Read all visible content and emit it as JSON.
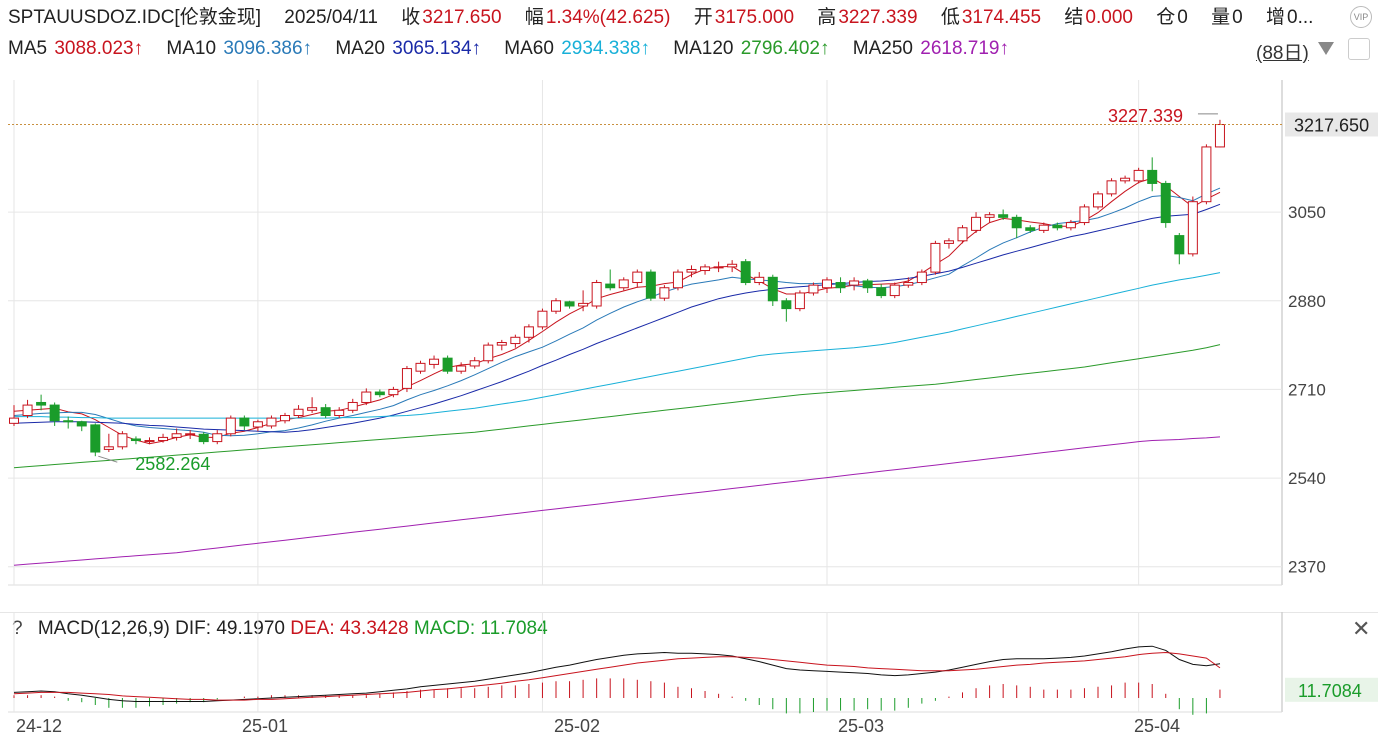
{
  "header": {
    "symbol": "SPTAUUSDOZ.IDC[伦敦金现]",
    "date": "2025/04/11",
    "close_label": "收",
    "close_value": "3217.650",
    "change_label": "幅",
    "change_value": "1.34%(42.625)",
    "open_label": "开",
    "open_value": "3175.000",
    "high_label": "高",
    "high_value": "3227.339",
    "low_label": "低",
    "low_value": "3174.455",
    "settle_label": "结",
    "settle_value": "0.000",
    "oi_label": "仓",
    "oi_value": "0",
    "vol_label": "量",
    "vol_value": "0",
    "inc_label": "增",
    "inc_value": "0..."
  },
  "ma_line": {
    "ma5_label": "MA5",
    "ma5_value": "3088.023↑",
    "ma10_label": "MA10",
    "ma10_value": "3096.386↑",
    "ma20_label": "MA20",
    "ma20_value": "3065.134↑",
    "ma60_label": "MA60",
    "ma60_value": "2934.338↑",
    "ma120_label": "MA120",
    "ma120_value": "2796.402↑",
    "ma250_label": "MA250",
    "ma250_value": "2618.719↑",
    "period": "(88日)"
  },
  "corner_icon_text": "VIP",
  "colors": {
    "up": "#c8141e",
    "down": "#1a9c2a",
    "ma5": "#c8141e",
    "ma10": "#2a7ab8",
    "ma20": "#1a2aa8",
    "ma60": "#18b0d8",
    "ma120": "#2a9a2a",
    "ma250": "#a020b0"
  },
  "macd": {
    "title": "MACD(12,26,9)",
    "dif_label": "DIF:",
    "dif_value": "49.1970",
    "dea_label": "DEA:",
    "dea_value": "43.3428",
    "macd_label": "MACD:",
    "macd_value": "11.7084",
    "current_tag": "11.7084"
  },
  "chart_data": {
    "type": "candlestick",
    "y_ticks": [
      2370,
      2540,
      2710,
      2880,
      3050
    ],
    "ylim": [
      2335,
      3265
    ],
    "price_tag": "3217.650",
    "high_annotation": "3227.339",
    "low_annotation": "2582.264",
    "x_labels": [
      "24-12",
      "25-01",
      "25-02",
      "25-03",
      "25-04"
    ],
    "x_label_index": [
      0,
      18,
      39,
      60,
      83
    ],
    "candles": [
      [
        2645,
        2655,
        2640,
        2680
      ],
      [
        2660,
        2680,
        2655,
        2690
      ],
      [
        2685,
        2680,
        2670,
        2700
      ],
      [
        2680,
        2650,
        2640,
        2685
      ],
      [
        2650,
        2648,
        2635,
        2658
      ],
      [
        2648,
        2640,
        2630,
        2650
      ],
      [
        2642,
        2590,
        2582,
        2645
      ],
      [
        2595,
        2600,
        2590,
        2625
      ],
      [
        2600,
        2625,
        2595,
        2630
      ],
      [
        2615,
        2612,
        2605,
        2620
      ],
      [
        2610,
        2612,
        2605,
        2618
      ],
      [
        2612,
        2618,
        2608,
        2625
      ],
      [
        2618,
        2625,
        2612,
        2635
      ],
      [
        2625,
        2625,
        2615,
        2632
      ],
      [
        2624,
        2610,
        2605,
        2628
      ],
      [
        2610,
        2625,
        2605,
        2632
      ],
      [
        2625,
        2655,
        2620,
        2660
      ],
      [
        2655,
        2640,
        2632,
        2660
      ],
      [
        2638,
        2648,
        2630,
        2652
      ],
      [
        2640,
        2655,
        2635,
        2660
      ],
      [
        2650,
        2660,
        2645,
        2665
      ],
      [
        2660,
        2672,
        2655,
        2680
      ],
      [
        2670,
        2675,
        2665,
        2695
      ],
      [
        2675,
        2660,
        2655,
        2682
      ],
      [
        2660,
        2670,
        2655,
        2676
      ],
      [
        2670,
        2685,
        2665,
        2692
      ],
      [
        2685,
        2705,
        2680,
        2712
      ],
      [
        2705,
        2700,
        2695,
        2710
      ],
      [
        2700,
        2710,
        2695,
        2715
      ],
      [
        2712,
        2750,
        2705,
        2755
      ],
      [
        2745,
        2760,
        2740,
        2765
      ],
      [
        2758,
        2768,
        2750,
        2775
      ],
      [
        2770,
        2745,
        2740,
        2775
      ],
      [
        2745,
        2755,
        2740,
        2762
      ],
      [
        2755,
        2765,
        2750,
        2772
      ],
      [
        2765,
        2795,
        2760,
        2800
      ],
      [
        2795,
        2800,
        2785,
        2805
      ],
      [
        2798,
        2810,
        2790,
        2815
      ],
      [
        2810,
        2830,
        2800,
        2835
      ],
      [
        2830,
        2860,
        2825,
        2865
      ],
      [
        2860,
        2880,
        2855,
        2885
      ],
      [
        2878,
        2870,
        2865,
        2880
      ],
      [
        2870,
        2875,
        2860,
        2900
      ],
      [
        2870,
        2915,
        2865,
        2920
      ],
      [
        2912,
        2905,
        2900,
        2940
      ],
      [
        2905,
        2920,
        2900,
        2925
      ],
      [
        2915,
        2935,
        2905,
        2940
      ],
      [
        2935,
        2885,
        2880,
        2940
      ],
      [
        2885,
        2905,
        2880,
        2910
      ],
      [
        2905,
        2935,
        2900,
        2940
      ],
      [
        2935,
        2940,
        2925,
        2948
      ],
      [
        2938,
        2945,
        2930,
        2950
      ],
      [
        2945,
        2945,
        2935,
        2955
      ],
      [
        2945,
        2950,
        2935,
        2958
      ],
      [
        2955,
        2915,
        2910,
        2960
      ],
      [
        2915,
        2925,
        2910,
        2935
      ],
      [
        2925,
        2880,
        2870,
        2930
      ],
      [
        2880,
        2865,
        2840,
        2885
      ],
      [
        2865,
        2895,
        2860,
        2900
      ],
      [
        2895,
        2910,
        2890,
        2915
      ],
      [
        2905,
        2920,
        2895,
        2925
      ],
      [
        2915,
        2905,
        2895,
        2925
      ],
      [
        2910,
        2918,
        2900,
        2925
      ],
      [
        2918,
        2905,
        2895,
        2922
      ],
      [
        2905,
        2890,
        2885,
        2912
      ],
      [
        2890,
        2910,
        2885,
        2915
      ],
      [
        2910,
        2915,
        2905,
        2925
      ],
      [
        2915,
        2935,
        2910,
        2940
      ],
      [
        2935,
        2990,
        2930,
        2995
      ],
      [
        2990,
        2995,
        2980,
        3000
      ],
      [
        2995,
        3020,
        2990,
        3025
      ],
      [
        3015,
        3040,
        3010,
        3050
      ],
      [
        3040,
        3045,
        3030,
        3050
      ],
      [
        3045,
        3040,
        3035,
        3055
      ],
      [
        3040,
        3020,
        3000,
        3045
      ],
      [
        3020,
        3015,
        3010,
        3025
      ],
      [
        3015,
        3025,
        3010,
        3030
      ],
      [
        3025,
        3020,
        3015,
        3030
      ],
      [
        3020,
        3030,
        3015,
        3035
      ],
      [
        3030,
        3060,
        3025,
        3065
      ],
      [
        3060,
        3085,
        3055,
        3090
      ],
      [
        3085,
        3110,
        3080,
        3115
      ],
      [
        3110,
        3115,
        3105,
        3120
      ],
      [
        3110,
        3130,
        3105,
        3135
      ],
      [
        3130,
        3105,
        3090,
        3155
      ],
      [
        3105,
        3030,
        3020,
        3110
      ],
      [
        3005,
        2970,
        2950,
        3010
      ],
      [
        2970,
        3070,
        2965,
        3080
      ],
      [
        3070,
        3175,
        3065,
        3180
      ],
      [
        3175,
        3218,
        3174,
        3227
      ]
    ],
    "ma_series": [
      {
        "name": "MA5",
        "values": [
          2668,
          2670,
          2672,
          2674,
          2667,
          2663,
          2652,
          2637,
          2622,
          2613,
          2606,
          2611,
          2618,
          2623,
          2618,
          2618,
          2626,
          2630,
          2637,
          2645,
          2652,
          2656,
          2662,
          2668,
          2670,
          2676,
          2683,
          2690,
          2700,
          2715,
          2727,
          2740,
          2752,
          2757,
          2759,
          2769,
          2777,
          2788,
          2804,
          2821,
          2839,
          2855,
          2868,
          2884,
          2892,
          2899,
          2906,
          2908,
          2913,
          2916,
          2930,
          2941,
          2945,
          2946,
          2930,
          2918,
          2903,
          2893,
          2893,
          2898,
          2904,
          2906,
          2910,
          2911,
          2912,
          2913,
          2918,
          2933,
          2950,
          2966,
          2992,
          3013,
          3030,
          3038,
          3035,
          3031,
          3028,
          3023,
          3023,
          3034,
          3049,
          3070,
          3090,
          3107,
          3115,
          3100,
          3080,
          3060,
          3075,
          3088
        ]
      },
      {
        "name": "MA10",
        "values": [
          2660,
          2662,
          2664,
          2665,
          2666,
          2666,
          2662,
          2654,
          2646,
          2640,
          2637,
          2635,
          2633,
          2631,
          2628,
          2622,
          2621,
          2622,
          2625,
          2629,
          2631,
          2636,
          2642,
          2649,
          2655,
          2660,
          2666,
          2672,
          2679,
          2690,
          2700,
          2708,
          2717,
          2727,
          2738,
          2750,
          2762,
          2773,
          2782,
          2791,
          2803,
          2816,
          2828,
          2843,
          2856,
          2868,
          2878,
          2887,
          2897,
          2905,
          2912,
          2916,
          2920,
          2925,
          2922,
          2920,
          2918,
          2915,
          2913,
          2913,
          2914,
          2912,
          2909,
          2906,
          2905,
          2907,
          2911,
          2917,
          2924,
          2931,
          2947,
          2962,
          2978,
          2991,
          3001,
          3012,
          3021,
          3028,
          3031,
          3034,
          3039,
          3048,
          3058,
          3070,
          3080,
          3082,
          3078,
          3072,
          3085,
          3096
        ]
      },
      {
        "name": "MA20",
        "values": [
          2645,
          2646,
          2647,
          2648,
          2648,
          2648,
          2647,
          2646,
          2645,
          2643,
          2641,
          2640,
          2638,
          2636,
          2634,
          2633,
          2632,
          2631,
          2630,
          2629,
          2628,
          2630,
          2633,
          2637,
          2641,
          2645,
          2650,
          2655,
          2661,
          2668,
          2675,
          2682,
          2690,
          2698,
          2707,
          2716,
          2725,
          2735,
          2745,
          2756,
          2766,
          2777,
          2787,
          2798,
          2808,
          2818,
          2828,
          2838,
          2848,
          2858,
          2868,
          2876,
          2884,
          2890,
          2895,
          2899,
          2902,
          2905,
          2907,
          2909,
          2911,
          2913,
          2915,
          2917,
          2918,
          2920,
          2923,
          2927,
          2932,
          2937,
          2944,
          2952,
          2960,
          2968,
          2975,
          2982,
          2989,
          2996,
          3003,
          3008,
          3014,
          3020,
          3026,
          3032,
          3038,
          3042,
          3044,
          3046,
          3055,
          3065
        ]
      },
      {
        "name": "MA60",
        "values": [
          2658,
          2658,
          2658,
          2657,
          2657,
          2656,
          2656,
          2655,
          2655,
          2655,
          2655,
          2655,
          2655,
          2655,
          2655,
          2655,
          2655,
          2655,
          2655,
          2655,
          2655,
          2655,
          2655,
          2655,
          2656,
          2656,
          2657,
          2658,
          2659,
          2660,
          2662,
          2665,
          2668,
          2671,
          2674,
          2678,
          2682,
          2686,
          2690,
          2695,
          2700,
          2705,
          2710,
          2715,
          2720,
          2725,
          2730,
          2735,
          2740,
          2745,
          2750,
          2755,
          2760,
          2765,
          2770,
          2775,
          2778,
          2780,
          2782,
          2784,
          2786,
          2788,
          2790,
          2793,
          2796,
          2800,
          2805,
          2810,
          2815,
          2820,
          2826,
          2832,
          2838,
          2844,
          2850,
          2856,
          2862,
          2868,
          2874,
          2880,
          2886,
          2892,
          2898,
          2904,
          2910,
          2915,
          2920,
          2924,
          2929,
          2934
        ]
      },
      {
        "name": "MA120",
        "values": [
          2560,
          2562,
          2564,
          2566,
          2568,
          2570,
          2572,
          2574,
          2576,
          2578,
          2580,
          2582,
          2584,
          2586,
          2588,
          2590,
          2592,
          2594,
          2596,
          2598,
          2600,
          2602,
          2604,
          2606,
          2608,
          2610,
          2612,
          2614,
          2616,
          2618,
          2620,
          2622,
          2624,
          2626,
          2628,
          2631,
          2634,
          2637,
          2640,
          2643,
          2646,
          2649,
          2652,
          2655,
          2658,
          2661,
          2664,
          2667,
          2670,
          2673,
          2676,
          2679,
          2682,
          2685,
          2688,
          2691,
          2694,
          2697,
          2700,
          2702,
          2704,
          2706,
          2708,
          2710,
          2712,
          2714,
          2716,
          2718,
          2720,
          2723,
          2726,
          2729,
          2732,
          2735,
          2738,
          2741,
          2744,
          2747,
          2750,
          2753,
          2757,
          2761,
          2765,
          2769,
          2773,
          2777,
          2781,
          2785,
          2790,
          2796
        ]
      },
      {
        "name": "MA250",
        "values": [
          2373,
          2375,
          2377,
          2379,
          2381,
          2383,
          2385,
          2387,
          2389,
          2391,
          2393,
          2395,
          2397,
          2400,
          2403,
          2406,
          2409,
          2412,
          2415,
          2418,
          2421,
          2424,
          2427,
          2430,
          2433,
          2436,
          2439,
          2442,
          2445,
          2448,
          2451,
          2454,
          2457,
          2460,
          2463,
          2466,
          2469,
          2472,
          2475,
          2478,
          2481,
          2484,
          2487,
          2490,
          2493,
          2496,
          2499,
          2502,
          2505,
          2508,
          2511,
          2514,
          2517,
          2520,
          2523,
          2526,
          2529,
          2532,
          2535,
          2538,
          2541,
          2544,
          2547,
          2550,
          2553,
          2556,
          2559,
          2562,
          2565,
          2568,
          2571,
          2574,
          2577,
          2580,
          2583,
          2586,
          2589,
          2592,
          2595,
          2598,
          2601,
          2604,
          2607,
          2610,
          2612,
          2613,
          2614,
          2616,
          2617,
          2619
        ]
      }
    ],
    "macd_dif": [
      8,
      9,
      10,
      9,
      6,
      4,
      1,
      -2,
      -4,
      -5,
      -5,
      -5,
      -5,
      -5,
      -5,
      -4,
      -3,
      -2,
      -1,
      0,
      1,
      2,
      3,
      4,
      5,
      6,
      7,
      9,
      11,
      13,
      16,
      18,
      20,
      22,
      24,
      27,
      30,
      33,
      36,
      40,
      44,
      47,
      51,
      55,
      58,
      61,
      63,
      64,
      65,
      64,
      64,
      63,
      62,
      60,
      56,
      52,
      47,
      42,
      40,
      39,
      38,
      37,
      36,
      35,
      33,
      32,
      33,
      35,
      37,
      40,
      44,
      48,
      52,
      55,
      56,
      56,
      56,
      57,
      58,
      60,
      63,
      66,
      70,
      73,
      74,
      68,
      55,
      48,
      46,
      49
    ],
    "macd_dea": [
      6,
      7,
      8,
      8,
      8,
      7,
      6,
      5,
      3,
      2,
      1,
      0,
      -1,
      -2,
      -2,
      -3,
      -3,
      -3,
      -2,
      -2,
      -1,
      0,
      1,
      2,
      3,
      4,
      5,
      6,
      7,
      8,
      10,
      12,
      13,
      15,
      17,
      19,
      21,
      24,
      26,
      29,
      32,
      35,
      38,
      41,
      44,
      47,
      50,
      52,
      54,
      56,
      57,
      58,
      59,
      59,
      58,
      57,
      55,
      53,
      51,
      49,
      47,
      46,
      45,
      43,
      42,
      41,
      40,
      39,
      39,
      39,
      40,
      41,
      43,
      45,
      47,
      48,
      50,
      51,
      52,
      53,
      55,
      57,
      59,
      62,
      64,
      65,
      63,
      60,
      57,
      43
    ]
  }
}
